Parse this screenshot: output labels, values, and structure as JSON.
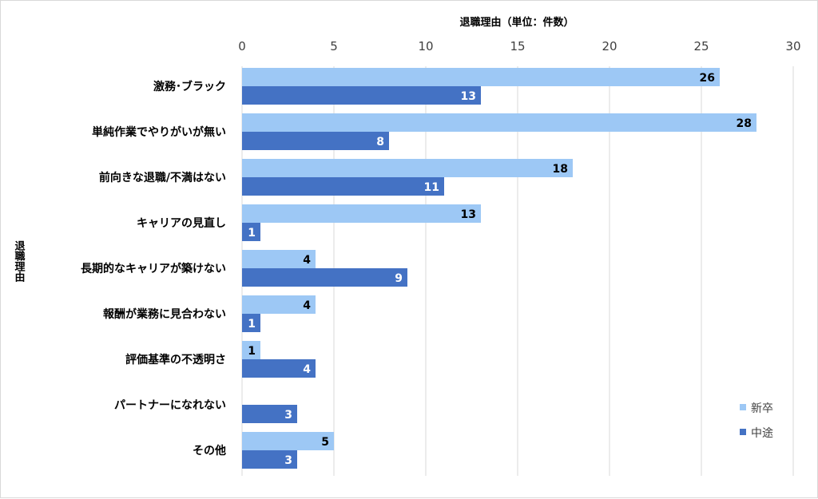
{
  "chart_data": {
    "type": "bar",
    "orientation": "horizontal",
    "title": "退職理由（単位：件数）",
    "xlabel": "退職理由（単位：件数）",
    "ylabel": "退職理由",
    "xlim": [
      0,
      30
    ],
    "xticks": [
      "0",
      "5",
      "10",
      "15",
      "20",
      "25",
      "30"
    ],
    "grid": true,
    "legend_position": "bottom-right",
    "categories": [
      "激務･ブラック",
      "単純作業でやりがいが無い",
      "前向きな退職/不満はない",
      "キャリアの見直し",
      "長期的なキャリアが築けない",
      "報酬が業務に見合わない",
      "評価基準の不透明さ",
      "パートナーになれない",
      "その他"
    ],
    "series": [
      {
        "name": "新卒",
        "color": "#9DC8F5",
        "values": [
          26,
          28,
          18,
          13,
          4,
          4,
          1,
          0,
          5
        ]
      },
      {
        "name": "中途",
        "color": "#4472C4",
        "values": [
          13,
          8,
          11,
          1,
          9,
          1,
          4,
          3,
          3
        ]
      }
    ]
  }
}
